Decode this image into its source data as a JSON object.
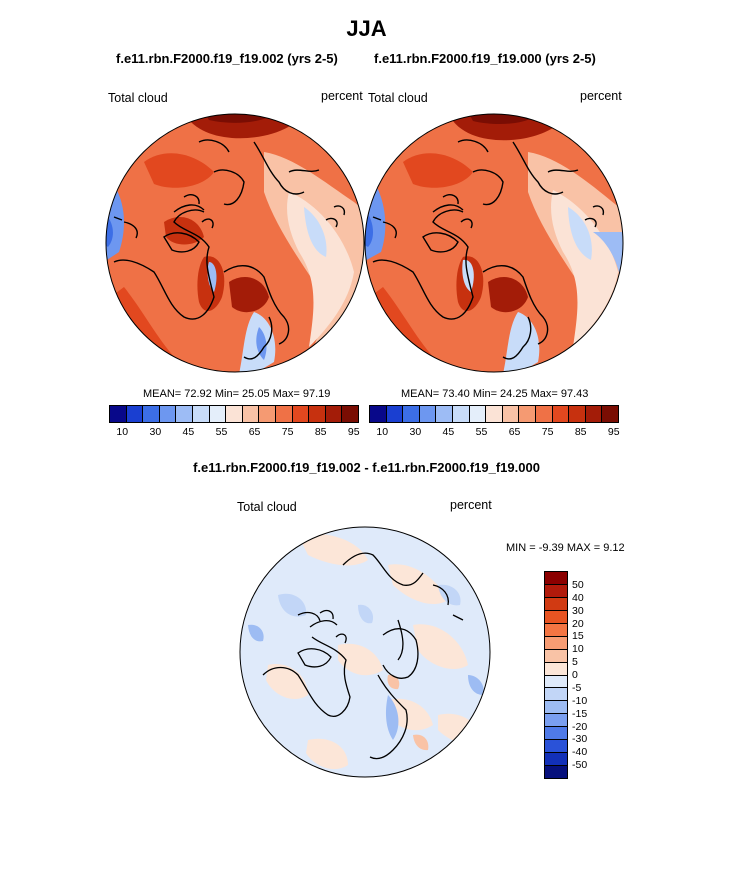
{
  "title": "JJA",
  "panels": [
    {
      "case_title": "f.e11.rbn.F2000.f19_f19.002 (yrs 2-5)",
      "variable": "Total cloud",
      "units": "percent",
      "stats": "MEAN=  72.92  Min=  25.05  Max=  97.19"
    },
    {
      "case_title": "f.e11.rbn.F2000.f19_f19.000 (yrs 2-5)",
      "variable": "Total cloud",
      "units": "percent",
      "stats": "MEAN=  73.40  Min=  24.25  Max=  97.43"
    }
  ],
  "colorbar_top": {
    "labels": [
      "10",
      "30",
      "45",
      "55",
      "65",
      "75",
      "85",
      "95"
    ],
    "colors": [
      "#08088a",
      "#1a3fd1",
      "#3c6ee6",
      "#6d97f0",
      "#9dbcf5",
      "#c8dcf9",
      "#e4eefa",
      "#fbe3d6",
      "#f9c2a6",
      "#f59a72",
      "#ef7146",
      "#e2481f",
      "#c7310f",
      "#a31c08",
      "#7a0d03"
    ]
  },
  "difference": {
    "title": "f.e11.rbn.F2000.f19_f19.002 - f.e11.rbn.F2000.f19_f19.000",
    "variable": "Total cloud",
    "units": "percent",
    "minmax": "MIN =  -9.39 MAX =   9.12",
    "colorbar": {
      "labels": [
        "50",
        "40",
        "30",
        "20",
        "15",
        "10",
        "5",
        "0",
        "-5",
        "-10",
        "-15",
        "-20",
        "-30",
        "-40",
        "-50"
      ],
      "colors": [
        "#8b0000",
        "#b11a0b",
        "#d13a12",
        "#e85422",
        "#f47543",
        "#f79c73",
        "#f9c3a6",
        "#fce6d8",
        "#dfeafa",
        "#c2d6f7",
        "#9dbcf3",
        "#7a9ff0",
        "#4f7ae8",
        "#2a52d8",
        "#1230b8",
        "#06107c"
      ]
    }
  },
  "colors": {
    "land_outline": "#000000",
    "warm": "#e2481f",
    "cool": "#9dbcf5"
  }
}
